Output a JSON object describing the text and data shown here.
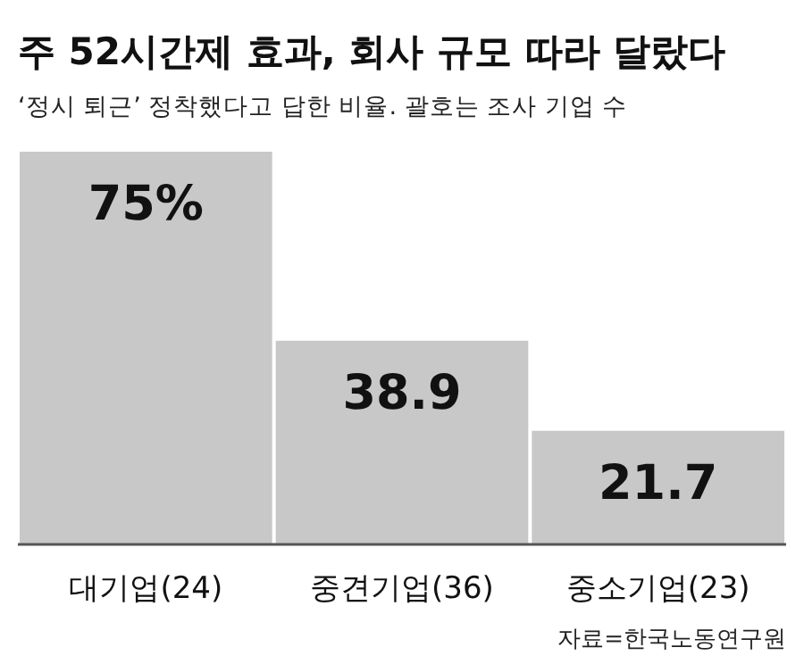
{
  "chart_data": {
    "type": "bar",
    "title": "주 52시간제 효과, 회사 규모 따라 달랐다",
    "subtitle": "‘정시 퇴근’ 정착했다고 답한 비율. 괄호는 조사 기업 수",
    "categories": [
      "대기업(24)",
      "중견기업(36)",
      "중소기업(23)"
    ],
    "values": [
      75,
      38.9,
      21.7
    ],
    "value_labels": [
      "75%",
      "38.9",
      "21.7"
    ],
    "color": "#c8c8c8",
    "annotations": [
      "자료=한국노동연구원"
    ]
  }
}
